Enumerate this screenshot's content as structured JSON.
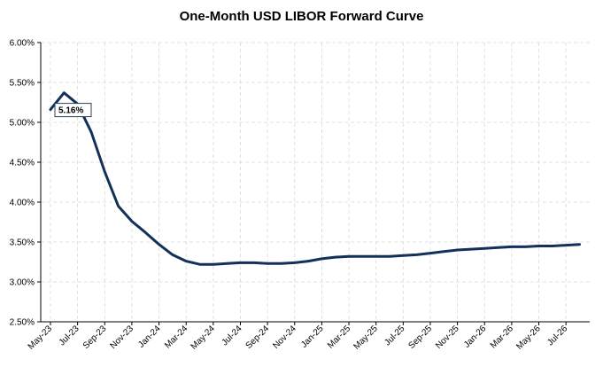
{
  "chart_data": {
    "type": "line",
    "title": "One-Month USD LIBOR Forward Curve",
    "xlabel": "",
    "ylabel": "",
    "ylim": [
      2.5,
      6.0
    ],
    "y_ticks": [
      "2.50%",
      "3.00%",
      "3.50%",
      "4.00%",
      "4.50%",
      "5.00%",
      "5.50%",
      "6.00%"
    ],
    "x_ticks": [
      "May-23",
      "Jul-23",
      "Sep-23",
      "Nov-23",
      "Jan-24",
      "Mar-24",
      "May-24",
      "Jul-24",
      "Sep-24",
      "Nov-24",
      "Jan-25",
      "Mar-25",
      "May-25",
      "Jul-25",
      "Sep-25",
      "Nov-25",
      "Jan-26",
      "Mar-26",
      "May-26",
      "Jul-26"
    ],
    "grid": true,
    "series": [
      {
        "color": "#12305a",
        "x": [
          "2023-05",
          "2023-06",
          "2023-07",
          "2023-08",
          "2023-09",
          "2023-10",
          "2023-11",
          "2023-12",
          "2024-01",
          "2024-02",
          "2024-03",
          "2024-04",
          "2024-05",
          "2024-06",
          "2024-07",
          "2024-08",
          "2024-09",
          "2024-10",
          "2024-11",
          "2024-12",
          "2025-01",
          "2025-02",
          "2025-03",
          "2025-04",
          "2025-05",
          "2025-06",
          "2025-07",
          "2025-08",
          "2025-09",
          "2025-10",
          "2025-11",
          "2025-12",
          "2026-01",
          "2026-02",
          "2026-03",
          "2026-04",
          "2026-05",
          "2026-06",
          "2026-07",
          "2026-08"
        ],
        "values": [
          5.16,
          5.37,
          5.23,
          4.88,
          4.38,
          3.95,
          3.76,
          3.62,
          3.47,
          3.34,
          3.26,
          3.22,
          3.22,
          3.23,
          3.24,
          3.24,
          3.23,
          3.23,
          3.24,
          3.26,
          3.29,
          3.31,
          3.32,
          3.32,
          3.32,
          3.32,
          3.33,
          3.34,
          3.36,
          3.38,
          3.4,
          3.41,
          3.42,
          3.43,
          3.44,
          3.44,
          3.45,
          3.45,
          3.46,
          3.47
        ]
      }
    ],
    "annotation": {
      "label": "5.16%",
      "value": 5.16,
      "x": "2023-05"
    }
  }
}
